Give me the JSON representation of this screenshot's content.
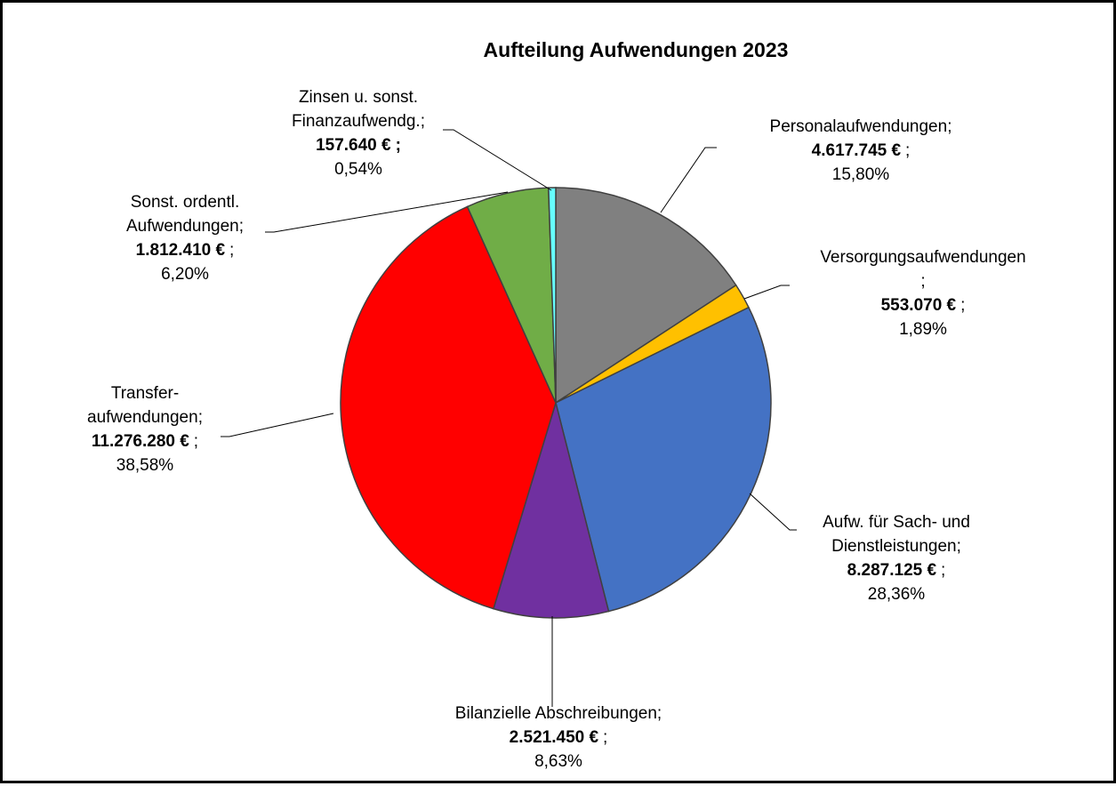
{
  "chart_data": {
    "type": "pie",
    "title": "Aufteilung Aufwendungen 2023",
    "categories": [
      "Personalaufwendungen",
      "Versorgungsaufwendungen",
      "Aufw. für Sach- und Dienstleistungen",
      "Bilanzielle Abschreibungen",
      "Transfer-aufwendungen",
      "Sonst. ordentl. Aufwendungen",
      "Zinsen u. sonst. Finanzaufwendg."
    ],
    "values": [
      4617745,
      553070,
      8287125,
      2521450,
      11276280,
      1812410,
      157640
    ],
    "value_labels": [
      "4.617.745 €",
      "553.070 €",
      "8.287.125 €",
      "2.521.450 €",
      "11.276.280 €",
      "1.812.410 €",
      "157.640 €"
    ],
    "percents": [
      15.8,
      1.89,
      28.36,
      8.63,
      38.58,
      6.2,
      0.54
    ],
    "percent_labels": [
      "15,80%",
      "1,89%",
      "28,36%",
      "8,63%",
      "38,58%",
      "6,20%",
      "0,54%"
    ],
    "separator": ";",
    "colors": [
      "#808080",
      "#ffc000",
      "#4472c4",
      "#7030a0",
      "#ff0000",
      "#70ad47",
      "#66ffff"
    ]
  }
}
